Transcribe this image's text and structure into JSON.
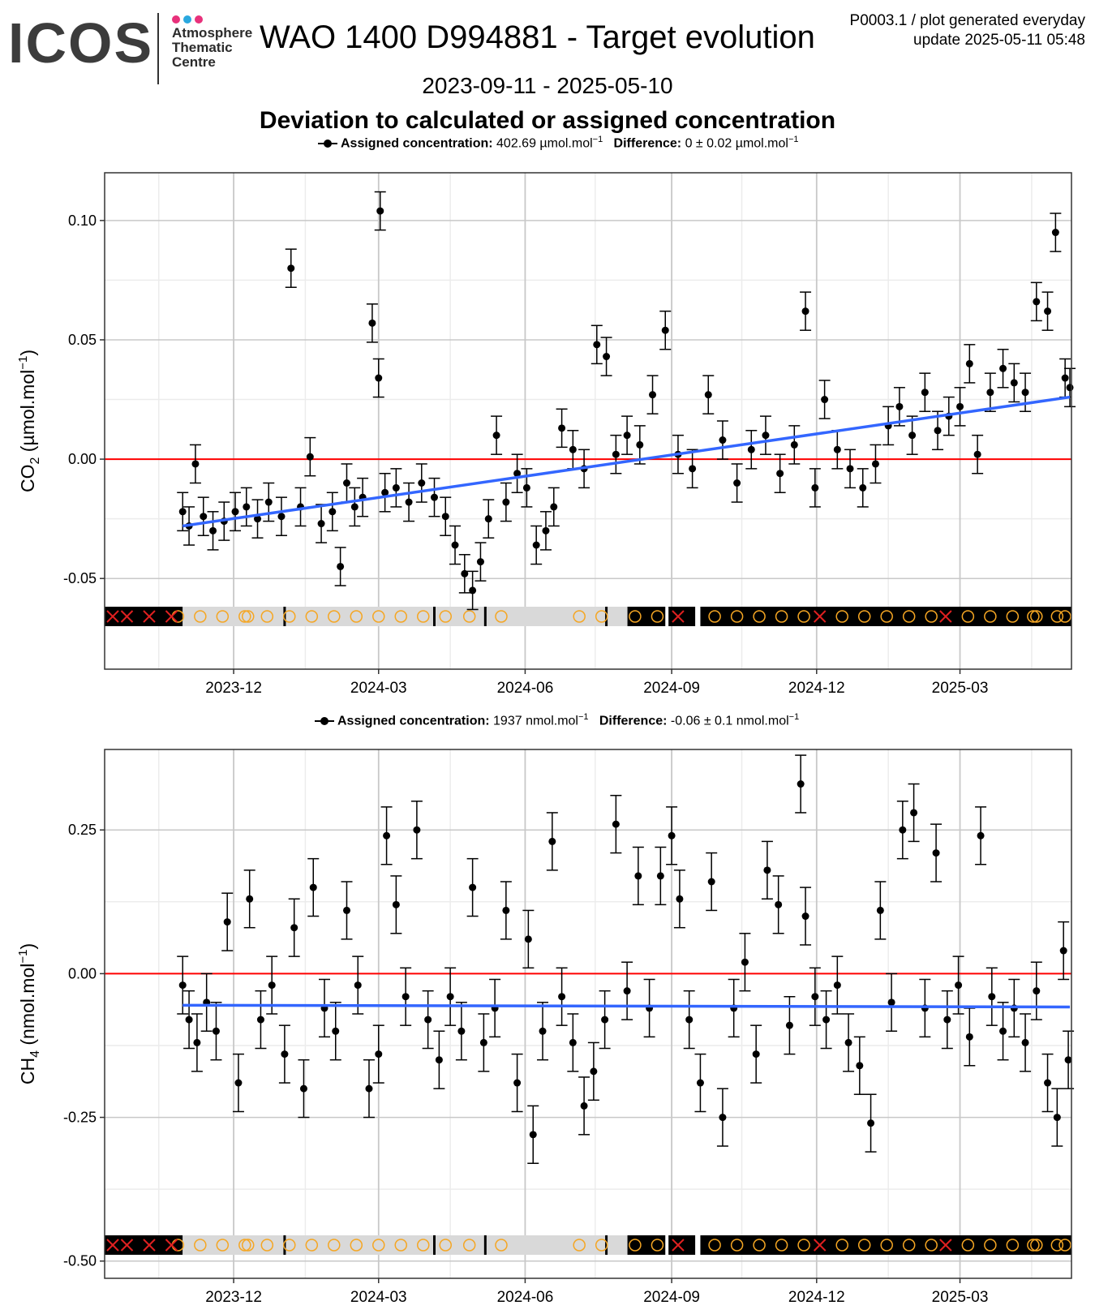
{
  "header": {
    "logo_text": "ICOS",
    "logo_sub": [
      "Atmosphere",
      "Thematic",
      "Centre"
    ],
    "logo_dot_colors": [
      "#e8317b",
      "#2aa8df",
      "#e8317b"
    ],
    "title": "WAO 1400 D994881 - Target evolution",
    "meta_line1": "P0003.1 / plot generated everyday",
    "meta_line2": "update  2025-05-11 05:48",
    "date_range": "2023-09-11 - 2025-05-10",
    "subtitle": "Deviation to calculated or assigned concentration"
  },
  "colors": {
    "trend": "#3366ff",
    "reference": "#ff0000",
    "points": "#000000",
    "flag_good": "#000000",
    "flag_other": "#d9d9d9",
    "marker_circle": "#f5a623",
    "marker_cross": "#e02020",
    "grid_major": "#c8c8c8",
    "grid_minor": "#ececec"
  },
  "chart_data": [
    {
      "type": "scatter",
      "panel": "CO2",
      "ylabel": "CO2 (µmol.mol-1)",
      "ylabel_main": "CO",
      "ylabel_sub": "2",
      "ylabel_unit": " (µmol.mol",
      "ylabel_sup": "−1",
      "legend": {
        "assigned_label": "Assigned concentration:",
        "assigned_value": "402.69 µmol.mol",
        "assigned_sup": "−1",
        "difference_label": "Difference:",
        "difference_value": "0 ± 0.02 µmol.mol",
        "difference_sup": "−1"
      },
      "xlim": [
        "2023-09-11",
        "2025-05-10"
      ],
      "ylim": [
        -0.088,
        0.12
      ],
      "x_ticks": [
        "2023-12",
        "2024-03",
        "2024-06",
        "2024-09",
        "2024-12",
        "2025-03"
      ],
      "y_ticks": [
        0.1,
        0.05,
        0.0,
        -0.05
      ],
      "y_tick_labels": [
        "0.10",
        "0.05",
        "0.00",
        "-0.05"
      ],
      "error_bar": 0.008,
      "series": [
        {
          "values": [
            [
              "2023-10-30",
              -0.022
            ],
            [
              "2023-11-03",
              -0.028
            ],
            [
              "2023-11-07",
              -0.002
            ],
            [
              "2023-11-12",
              -0.024
            ],
            [
              "2023-11-18",
              -0.03
            ],
            [
              "2023-11-25",
              -0.026
            ],
            [
              "2023-12-02",
              -0.022
            ],
            [
              "2023-12-09",
              -0.02
            ],
            [
              "2023-12-16",
              -0.025
            ],
            [
              "2023-12-23",
              -0.018
            ],
            [
              "2023-12-31",
              -0.024
            ],
            [
              "2024-01-06",
              0.08
            ],
            [
              "2024-01-12",
              -0.02
            ],
            [
              "2024-01-18",
              0.001
            ],
            [
              "2024-01-25",
              -0.027
            ],
            [
              "2024-02-01",
              -0.022
            ],
            [
              "2024-02-06",
              -0.045
            ],
            [
              "2024-02-10",
              -0.01
            ],
            [
              "2024-02-15",
              -0.02
            ],
            [
              "2024-02-20",
              -0.016
            ],
            [
              "2024-02-26",
              0.057
            ],
            [
              "2024-03-01",
              0.034
            ],
            [
              "2024-03-02",
              0.104
            ],
            [
              "2024-03-05",
              -0.014
            ],
            [
              "2024-03-12",
              -0.012
            ],
            [
              "2024-03-20",
              -0.018
            ],
            [
              "2024-03-28",
              -0.01
            ],
            [
              "2024-04-05",
              -0.016
            ],
            [
              "2024-04-12",
              -0.024
            ],
            [
              "2024-04-18",
              -0.036
            ],
            [
              "2024-04-24",
              -0.048
            ],
            [
              "2024-04-29",
              -0.055
            ],
            [
              "2024-05-04",
              -0.043
            ],
            [
              "2024-05-09",
              -0.025
            ],
            [
              "2024-05-14",
              0.01
            ],
            [
              "2024-05-20",
              -0.018
            ],
            [
              "2024-05-27",
              -0.006
            ],
            [
              "2024-06-02",
              -0.012
            ],
            [
              "2024-06-08",
              -0.036
            ],
            [
              "2024-06-14",
              -0.03
            ],
            [
              "2024-06-19",
              -0.02
            ],
            [
              "2024-06-24",
              0.013
            ],
            [
              "2024-07-01",
              0.004
            ],
            [
              "2024-07-08",
              -0.004
            ],
            [
              "2024-07-16",
              0.048
            ],
            [
              "2024-07-22",
              0.043
            ],
            [
              "2024-07-28",
              0.002
            ],
            [
              "2024-08-04",
              0.01
            ],
            [
              "2024-08-12",
              0.006
            ],
            [
              "2024-08-20",
              0.027
            ],
            [
              "2024-08-28",
              0.054
            ],
            [
              "2024-09-05",
              0.002
            ],
            [
              "2024-09-14",
              -0.004
            ],
            [
              "2024-09-24",
              0.027
            ],
            [
              "2024-10-03",
              0.008
            ],
            [
              "2024-10-12",
              -0.01
            ],
            [
              "2024-10-21",
              0.004
            ],
            [
              "2024-10-30",
              0.01
            ],
            [
              "2024-11-08",
              -0.006
            ],
            [
              "2024-11-17",
              0.006
            ],
            [
              "2024-11-24",
              0.062
            ],
            [
              "2024-11-30",
              -0.012
            ],
            [
              "2024-12-06",
              0.025
            ],
            [
              "2024-12-14",
              0.004
            ],
            [
              "2024-12-22",
              -0.004
            ],
            [
              "2024-12-30",
              -0.012
            ],
            [
              "2025-01-07",
              -0.002
            ],
            [
              "2025-01-15",
              0.014
            ],
            [
              "2025-01-22",
              0.022
            ],
            [
              "2025-01-30",
              0.01
            ],
            [
              "2025-02-07",
              0.028
            ],
            [
              "2025-02-15",
              0.012
            ],
            [
              "2025-02-22",
              0.018
            ],
            [
              "2025-03-01",
              0.022
            ],
            [
              "2025-03-07",
              0.04
            ],
            [
              "2025-03-12",
              0.002
            ],
            [
              "2025-03-20",
              0.028
            ],
            [
              "2025-03-28",
              0.038
            ],
            [
              "2025-04-04",
              0.032
            ],
            [
              "2025-04-11",
              0.028
            ],
            [
              "2025-04-18",
              0.066
            ],
            [
              "2025-04-25",
              0.062
            ],
            [
              "2025-04-30",
              0.095
            ],
            [
              "2025-05-06",
              0.034
            ],
            [
              "2025-05-09",
              0.03
            ]
          ]
        }
      ],
      "trend": {
        "start": [
          "2023-10-30",
          -0.028
        ],
        "end": [
          "2025-05-09",
          0.026
        ]
      },
      "reference_line": 0
    },
    {
      "type": "scatter",
      "panel": "CH4",
      "ylabel": "CH4 (nmol.mol-1)",
      "ylabel_main": "CH",
      "ylabel_sub": "4",
      "ylabel_unit": " (nmol.mol",
      "ylabel_sup": "−1",
      "legend": {
        "assigned_label": "Assigned concentration:",
        "assigned_value": "1937 nmol.mol",
        "assigned_sup": "−1",
        "difference_label": "Difference:",
        "difference_value": "-0.06 ± 0.1 nmol.mol",
        "difference_sup": "−1"
      },
      "xlim": [
        "2023-09-11",
        "2025-05-10"
      ],
      "ylim": [
        -0.53,
        0.39
      ],
      "x_ticks": [
        "2023-12",
        "2024-03",
        "2024-06",
        "2024-09",
        "2024-12",
        "2025-03"
      ],
      "y_ticks": [
        0.25,
        0.0,
        -0.25,
        -0.5
      ],
      "y_tick_labels": [
        "0.25",
        "0.00",
        "-0.25",
        "-0.50"
      ],
      "error_bar": 0.05,
      "series": [
        {
          "values": [
            [
              "2023-10-30",
              -0.02
            ],
            [
              "2023-11-03",
              -0.08
            ],
            [
              "2023-11-08",
              -0.12
            ],
            [
              "2023-11-14",
              -0.05
            ],
            [
              "2023-11-20",
              -0.1
            ],
            [
              "2023-11-27",
              0.09
            ],
            [
              "2023-12-04",
              -0.19
            ],
            [
              "2023-12-11",
              0.13
            ],
            [
              "2023-12-18",
              -0.08
            ],
            [
              "2023-12-25",
              -0.02
            ],
            [
              "2024-01-02",
              -0.14
            ],
            [
              "2024-01-08",
              0.08
            ],
            [
              "2024-01-14",
              -0.2
            ],
            [
              "2024-01-20",
              0.15
            ],
            [
              "2024-01-27",
              -0.06
            ],
            [
              "2024-02-03",
              -0.1
            ],
            [
              "2024-02-10",
              0.11
            ],
            [
              "2024-02-17",
              -0.02
            ],
            [
              "2024-02-24",
              -0.2
            ],
            [
              "2024-03-01",
              -0.14
            ],
            [
              "2024-03-06",
              0.24
            ],
            [
              "2024-03-12",
              0.12
            ],
            [
              "2024-03-18",
              -0.04
            ],
            [
              "2024-03-25",
              0.25
            ],
            [
              "2024-04-01",
              -0.08
            ],
            [
              "2024-04-08",
              -0.15
            ],
            [
              "2024-04-15",
              -0.04
            ],
            [
              "2024-04-22",
              -0.1
            ],
            [
              "2024-04-29",
              0.15
            ],
            [
              "2024-05-06",
              -0.12
            ],
            [
              "2024-05-13",
              -0.06
            ],
            [
              "2024-05-20",
              0.11
            ],
            [
              "2024-05-27",
              -0.19
            ],
            [
              "2024-06-03",
              0.06
            ],
            [
              "2024-06-06",
              -0.28
            ],
            [
              "2024-06-12",
              -0.1
            ],
            [
              "2024-06-18",
              0.23
            ],
            [
              "2024-06-24",
              -0.04
            ],
            [
              "2024-07-01",
              -0.12
            ],
            [
              "2024-07-08",
              -0.23
            ],
            [
              "2024-07-14",
              -0.17
            ],
            [
              "2024-07-21",
              -0.08
            ],
            [
              "2024-07-28",
              0.26
            ],
            [
              "2024-08-04",
              -0.03
            ],
            [
              "2024-08-11",
              0.17
            ],
            [
              "2024-08-18",
              -0.06
            ],
            [
              "2024-08-25",
              0.17
            ],
            [
              "2024-09-01",
              0.24
            ],
            [
              "2024-09-06",
              0.13
            ],
            [
              "2024-09-12",
              -0.08
            ],
            [
              "2024-09-19",
              -0.19
            ],
            [
              "2024-09-26",
              0.16
            ],
            [
              "2024-10-03",
              -0.25
            ],
            [
              "2024-10-10",
              -0.06
            ],
            [
              "2024-10-17",
              0.02
            ],
            [
              "2024-10-24",
              -0.14
            ],
            [
              "2024-10-31",
              0.18
            ],
            [
              "2024-11-07",
              0.12
            ],
            [
              "2024-11-14",
              -0.09
            ],
            [
              "2024-11-21",
              0.33
            ],
            [
              "2024-11-24",
              0.1
            ],
            [
              "2024-11-30",
              -0.04
            ],
            [
              "2024-12-07",
              -0.08
            ],
            [
              "2024-12-14",
              -0.02
            ],
            [
              "2024-12-21",
              -0.12
            ],
            [
              "2024-12-28",
              -0.16
            ],
            [
              "2025-01-04",
              -0.26
            ],
            [
              "2025-01-10",
              0.11
            ],
            [
              "2025-01-17",
              -0.05
            ],
            [
              "2025-01-24",
              0.25
            ],
            [
              "2025-01-31",
              0.28
            ],
            [
              "2025-02-07",
              -0.06
            ],
            [
              "2025-02-14",
              0.21
            ],
            [
              "2025-02-21",
              -0.08
            ],
            [
              "2025-02-28",
              -0.02
            ],
            [
              "2025-03-07",
              -0.11
            ],
            [
              "2025-03-14",
              0.24
            ],
            [
              "2025-03-21",
              -0.04
            ],
            [
              "2025-03-28",
              -0.1
            ],
            [
              "2025-04-04",
              -0.06
            ],
            [
              "2025-04-11",
              -0.12
            ],
            [
              "2025-04-18",
              -0.03
            ],
            [
              "2025-04-25",
              -0.19
            ],
            [
              "2025-05-01",
              -0.25
            ],
            [
              "2025-05-05",
              0.04
            ],
            [
              "2025-05-08",
              -0.15
            ]
          ]
        }
      ],
      "trend": {
        "start": [
          "2023-10-30",
          -0.055
        ],
        "end": [
          "2025-05-09",
          -0.058
        ]
      },
      "reference_line": 0
    }
  ],
  "flag_strip": {
    "blocks": [
      {
        "start": "2023-09-11",
        "end": "2023-10-30",
        "kind": "good"
      },
      {
        "start": "2023-10-30",
        "end": "2024-08-05",
        "kind": "other"
      },
      {
        "start": "2024-08-05",
        "end": "2024-08-28",
        "kind": "good"
      },
      {
        "start": "2024-08-30",
        "end": "2024-09-15",
        "kind": "good"
      },
      {
        "start": "2024-09-19",
        "end": "2025-05-10",
        "kind": "good"
      }
    ],
    "crosses": [
      "2023-09-11",
      "2023-09-25",
      "2023-10-09",
      "2023-10-23",
      "2024-09-05",
      "2024-12-03",
      "2025-02-20"
    ],
    "circles": [
      "2023-10-27",
      "2023-11-10",
      "2023-11-24",
      "2023-12-08",
      "2023-12-10",
      "2023-12-22",
      "2024-01-05",
      "2024-01-19",
      "2024-02-02",
      "2024-02-16",
      "2024-03-01",
      "2024-03-15",
      "2024-03-29",
      "2024-04-12",
      "2024-04-27",
      "2024-05-17",
      "2024-07-05",
      "2024-07-19",
      "2024-08-09",
      "2024-08-23",
      "2024-09-28",
      "2024-10-12",
      "2024-10-26",
      "2024-11-09",
      "2024-11-23",
      "2024-12-17",
      "2024-12-31",
      "2025-01-14",
      "2025-01-28",
      "2025-02-11",
      "2025-03-06",
      "2025-03-20",
      "2025-04-03",
      "2025-04-16",
      "2025-04-18",
      "2025-05-01",
      "2025-05-15"
    ],
    "ticks": [
      "2023-09-12",
      "2024-01-02",
      "2024-04-05",
      "2024-05-07",
      "2024-07-22",
      "2024-08-05",
      "2024-09-15"
    ]
  }
}
